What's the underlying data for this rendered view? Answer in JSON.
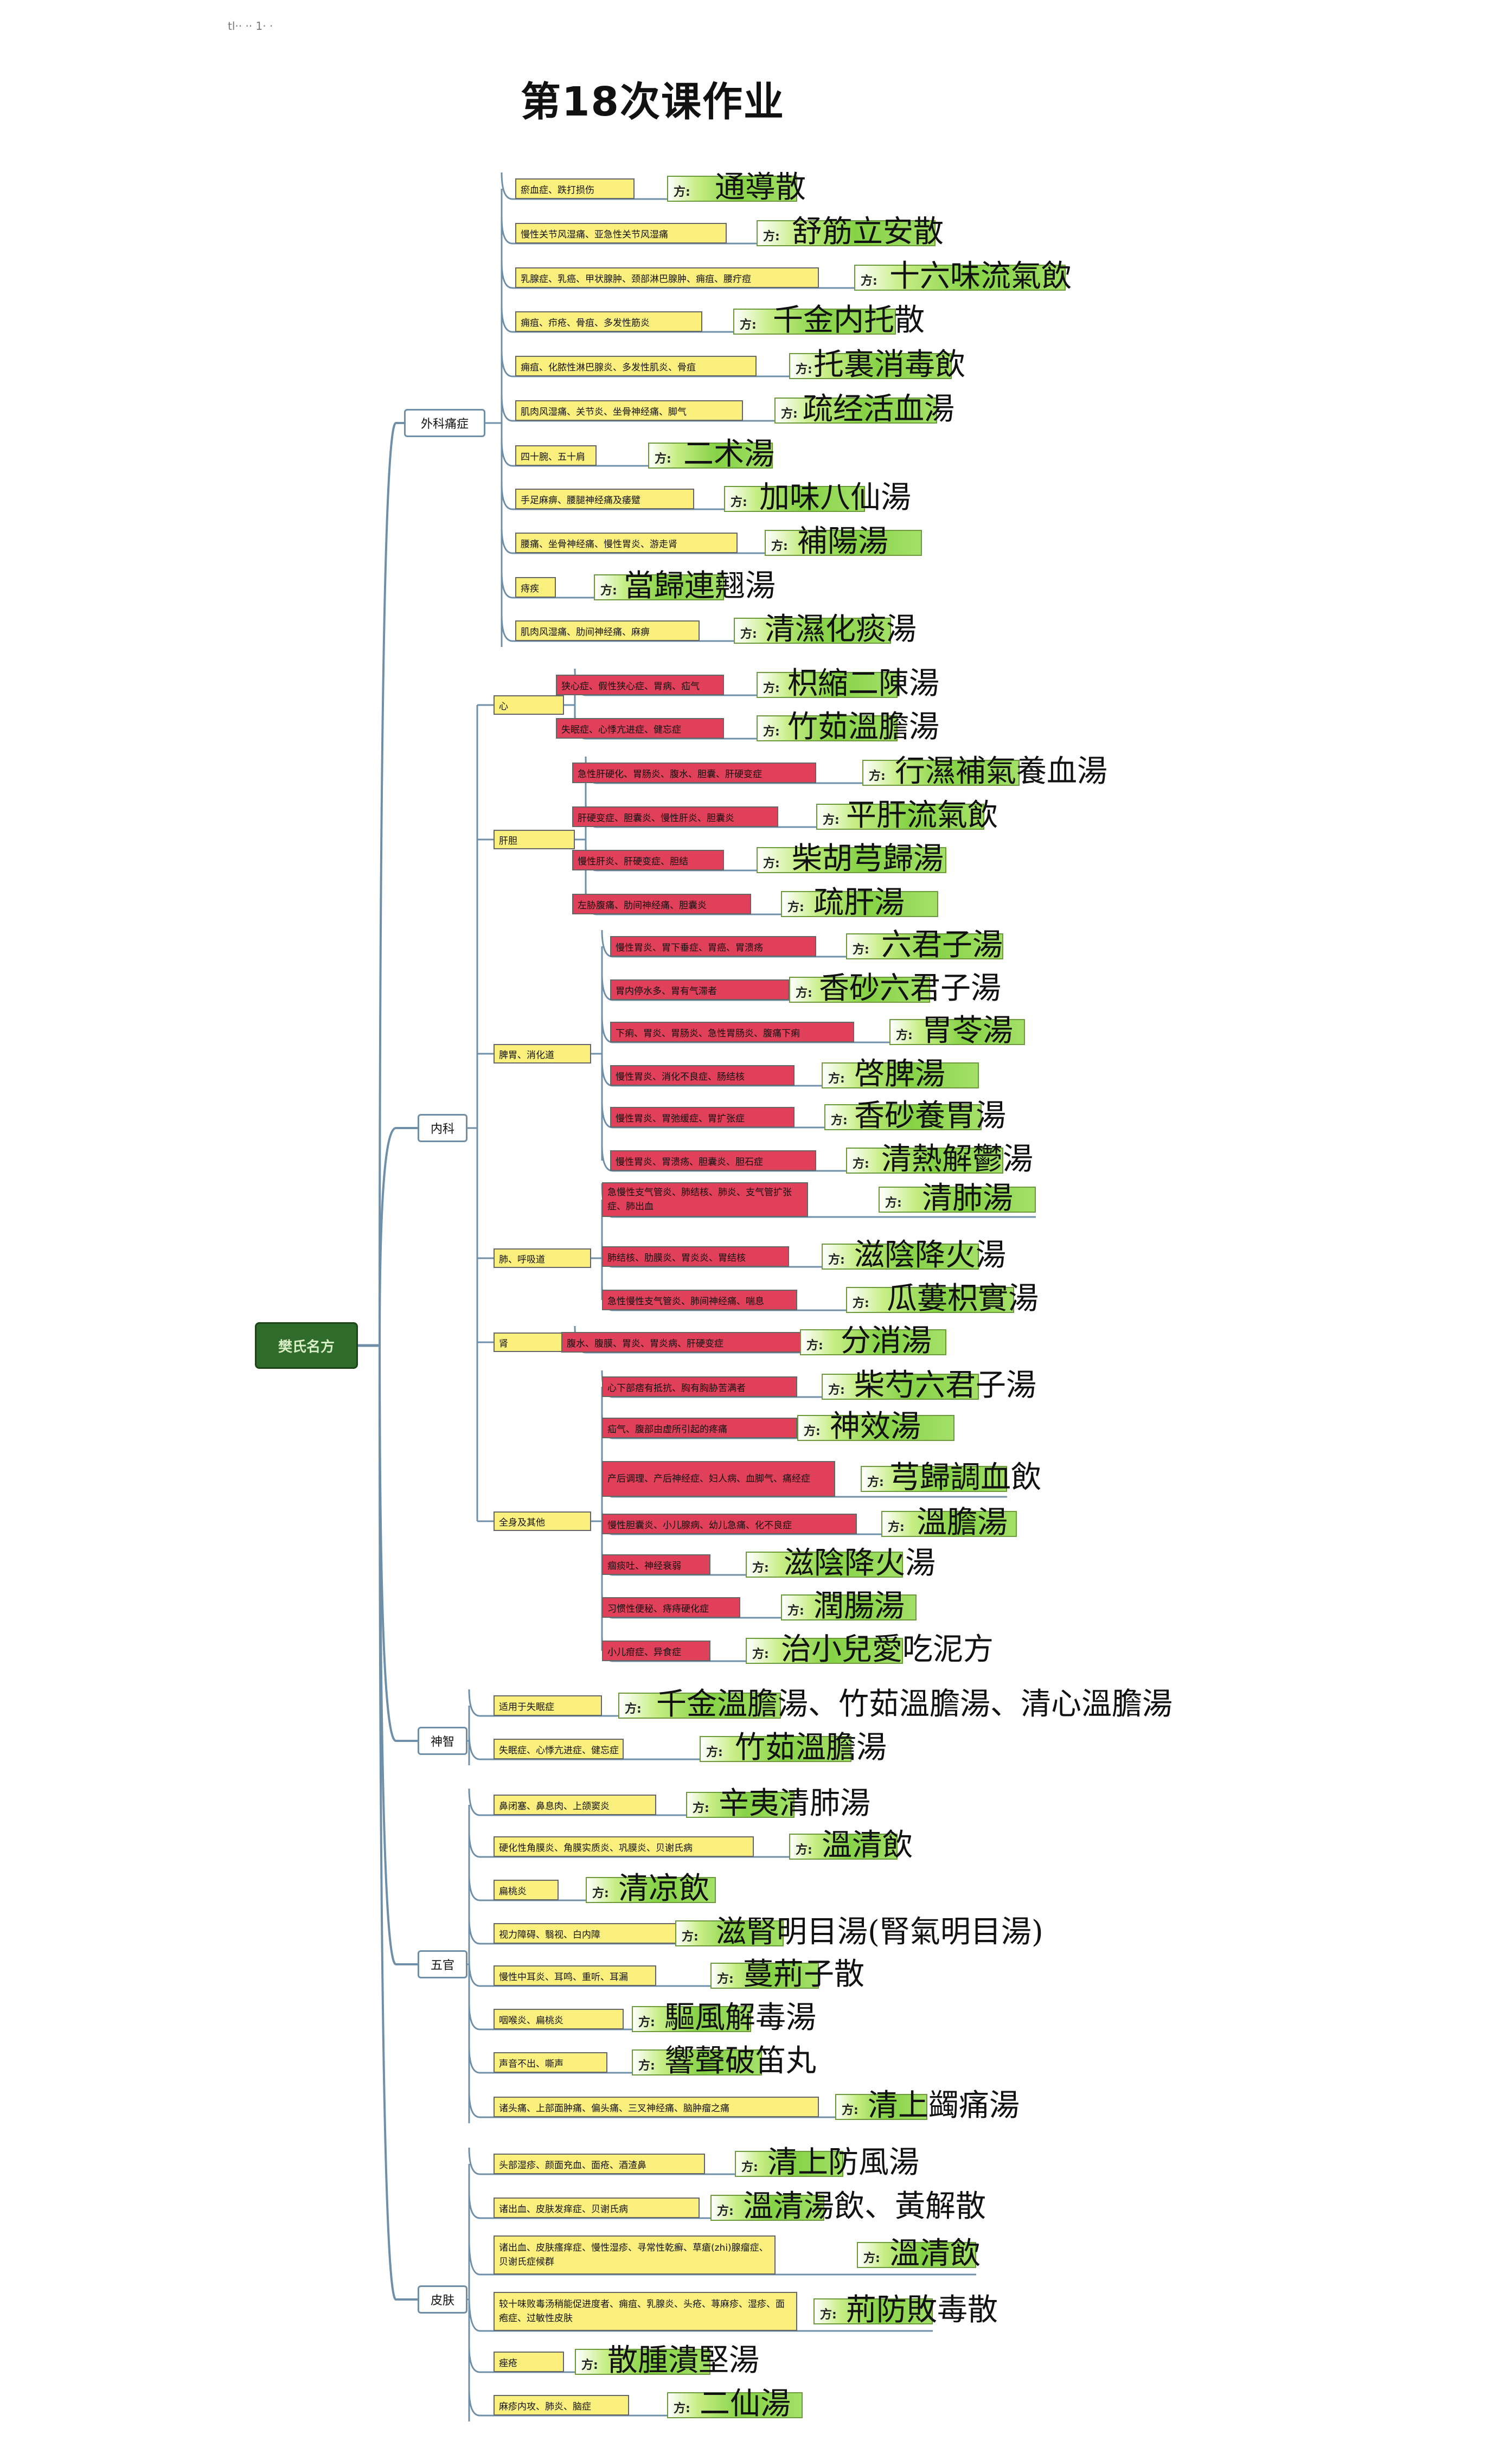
{
  "page": {
    "header_text": "tl··  ·· 1·  ·",
    "title": "第18次课作业"
  },
  "tree": {
    "root": "樊氏名方",
    "categories": [
      {
        "name": "外科痛症",
        "items": [
          {
            "label": "瘀血症、跌打损伤",
            "prefix": "方:",
            "formula": "通導散"
          },
          {
            "label": "慢性关节风湿痛、亚急性关节风湿痛",
            "prefix": "方:",
            "formula": "舒筋立安散"
          },
          {
            "label": "乳腺症、乳癌、甲状腺肿、颈部淋巴腺肿、痈疽、腰疔痘",
            "prefix": "方:",
            "formula": "十六味流氣飲"
          },
          {
            "label": "痈疽、疖疮、骨疽、多发性筋炎",
            "prefix": "方:",
            "formula": "千金内托散"
          },
          {
            "label": "痈疽、化脓性淋巴腺炎、多发性肌炎、骨疽",
            "prefix": "方:",
            "formula": "托裏消毒飲"
          },
          {
            "label": "肌肉风湿痛、关节炎、坐骨神经痛、脚气",
            "prefix": "方:",
            "formula": "疏经活血湯"
          },
          {
            "label": "四十腕、五十肩",
            "prefix": "方:",
            "formula": "二术湯"
          },
          {
            "label": "手足麻痹、腰腿神经痛及痿躄",
            "prefix": "方:",
            "formula": "加味八仙湯"
          },
          {
            "label": "腰痛、坐骨神经痛、慢性胃炎、游走肾",
            "prefix": "方:",
            "formula": "補陽湯"
          },
          {
            "label": "痔疾",
            "prefix": "方:",
            "formula": "當歸連翹湯"
          },
          {
            "label": "肌肉风湿痛、肋间神经痛、麻痹",
            "prefix": "方:",
            "formula": "清濕化痰湯"
          }
        ]
      },
      {
        "name": "内科",
        "groups": [
          {
            "name": "心",
            "items": [
              {
                "label": "狭心症、假性狭心症、胃病、疝气",
                "prefix": "方:",
                "formula": "枳縮二陳湯"
              },
              {
                "label": "失眠症、心悸亢进症、健忘症",
                "prefix": "方:",
                "formula": "竹茹溫膽湯"
              }
            ]
          },
          {
            "name": "肝胆",
            "items": [
              {
                "label": "急性肝硬化、胃肠炎、腹水、胆囊、肝硬变症",
                "prefix": "方:",
                "formula": "行濕補氣養血湯"
              },
              {
                "label": "肝硬变症、胆囊炎、慢性肝炎、胆囊炎",
                "prefix": "方:",
                "formula": "平肝流氣飲"
              },
              {
                "label": "慢性肝炎、肝硬变症、胆结",
                "prefix": "方:",
                "formula": "柴胡芎歸湯"
              },
              {
                "label": "左胁腹痛、肋间神经痛、胆囊炎",
                "prefix": "方:",
                "formula": "疏肝湯"
              }
            ]
          },
          {
            "name": "脾胃、消化道",
            "items": [
              {
                "label": "慢性胃炎、胃下垂症、胃癌、胃溃疡",
                "prefix": "方:",
                "formula": "六君子湯"
              },
              {
                "label": "胃内停水多、胃有气滞者",
                "prefix": "方:",
                "formula": "香砂六君子湯"
              },
              {
                "label": "下痢、胃炎、胃肠炎、急性胃肠炎、腹痛下痢",
                "prefix": "方:",
                "formula": "胃苓湯"
              },
              {
                "label": "慢性胃炎、消化不良症、肠结核",
                "prefix": "方:",
                "formula": "啓脾湯"
              },
              {
                "label": "慢性胃炎、胃弛缓症、胃扩张症",
                "prefix": "方:",
                "formula": "香砂養胃湯"
              },
              {
                "label": "慢性胃炎、胃溃疡、胆囊炎、胆石症",
                "prefix": "方:",
                "formula": "清熱解鬱湯"
              }
            ]
          },
          {
            "name": "肺、呼吸道",
            "items": [
              {
                "label": "急慢性支气管炎、肺结核、肺炎、支气管扩张症、肺出血",
                "prefix": "方:",
                "formula": "清肺湯"
              },
              {
                "label": "肺结核、肋膜炎、胃炎炎、胃结核",
                "prefix": "方:",
                "formula": "滋陰降火湯"
              },
              {
                "label": "急性慢性支气管炎、肺间神经痛、喘息",
                "prefix": "方:",
                "formula": "瓜蔞枳實湯"
              }
            ]
          },
          {
            "name": "肾",
            "items": [
              {
                "label": "腹水、腹膜、胃炎、胃炎病、肝硬变症",
                "prefix": "方:",
                "formula": "分消湯"
              }
            ]
          },
          {
            "name": "全身及其他",
            "items": [
              {
                "label": "心下部痞有抵抗、胸有胸胁苦满者",
                "prefix": "方:",
                "formula": "柴芍六君子湯"
              },
              {
                "label": "疝气、腹部由虚所引起的疼痛",
                "prefix": "方:",
                "formula": "神效湯"
              },
              {
                "label": "产后调理、产后神经症、妇人病、血脚气、痛经症",
                "prefix": "方:",
                "formula": "芎歸調血飲"
              },
              {
                "label": "慢性胆囊炎、小儿腺病、幼儿急痛、化不良症",
                "prefix": "方:",
                "formula": "溫膽湯"
              },
              {
                "label": "痼痰吐、神经衰弱",
                "prefix": "方:",
                "formula": "滋陰降火湯"
              },
              {
                "label": "习惯性便秘、痔痔硬化症",
                "prefix": "方:",
                "formula": "潤腸湯"
              },
              {
                "label": "小儿疳症、异食症",
                "prefix": "方:",
                "formula": "治小兒愛吃泥方"
              }
            ]
          }
        ]
      },
      {
        "name": "神智",
        "items": [
          {
            "label": "适用于失眠症",
            "prefix": "方:",
            "formula": "千金溫膽湯、竹茹溫膽湯、清心溫膽湯"
          },
          {
            "label": "失眠症、心悸亢进症、健忘症",
            "prefix": "方:",
            "formula": "竹茹溫膽湯"
          }
        ]
      },
      {
        "name": "五官",
        "items": [
          {
            "label": "鼻闭塞、鼻息肉、上颌窦炎",
            "prefix": "方:",
            "formula": "辛夷清肺湯"
          },
          {
            "label": "硬化性角膜炎、角膜实质炎、巩膜炎、贝谢氏病",
            "prefix": "方:",
            "formula": "溫清飲"
          },
          {
            "label": "扁桃炎",
            "prefix": "方:",
            "formula": "清凉飲"
          },
          {
            "label": "视力障碍、翳视、白内障",
            "prefix": "方:",
            "formula": "滋腎明目湯(腎氣明目湯)"
          },
          {
            "label": "慢性中耳炎、耳鸣、重听、耳漏",
            "prefix": "方:",
            "formula": "蔓荊子散"
          },
          {
            "label": "咽喉炎、扁桃炎",
            "prefix": "方:",
            "formula": "驅風解毒湯"
          },
          {
            "label": "声音不出、嘶声",
            "prefix": "方:",
            "formula": "響聲破笛丸"
          },
          {
            "label": "诸头痛、上部面肿痛、偏头痛、三叉神经痛、脑肿瘤之痛",
            "prefix": "方:",
            "formula": "清上蠲痛湯"
          }
        ]
      },
      {
        "name": "皮肤",
        "items": [
          {
            "label": "头部湿疹、颜面充血、面疮、酒渣鼻",
            "prefix": "方:",
            "formula": "清上防風湯"
          },
          {
            "label": "诸出血、皮肤发痒症、贝谢氏病",
            "prefix": "方:",
            "formula": "溫清湯飲、黃解散"
          },
          {
            "label": "诸出血、皮肤瘙痒症、慢性湿疹、寻常性乾癬、草瘡(zhi)腺瘤症、贝谢氏症候群",
            "prefix": "方:",
            "formula": "溫清飲"
          },
          {
            "label": "较十味败毒汤稍能促进度者、痈疽、乳腺炎、头疮、荨麻疹、湿疹、面疱症、过敏性皮肤",
            "prefix": "方:",
            "formula": "荊防敗毒散"
          },
          {
            "label": "痤疮",
            "prefix": "方:",
            "formula": "散腫潰堅湯"
          },
          {
            "label": "麻疹内攻、肺炎、脑症",
            "prefix": "方:",
            "formula": "二仙湯"
          }
        ]
      }
    ]
  },
  "colors": {
    "root_fill": "#2f6b2a",
    "root_text": "#d9efc7",
    "label_yellow": "#fbf07e",
    "label_red": "#e0405a",
    "prescription_green": "#86d246",
    "connector": "#6f8fa8"
  }
}
